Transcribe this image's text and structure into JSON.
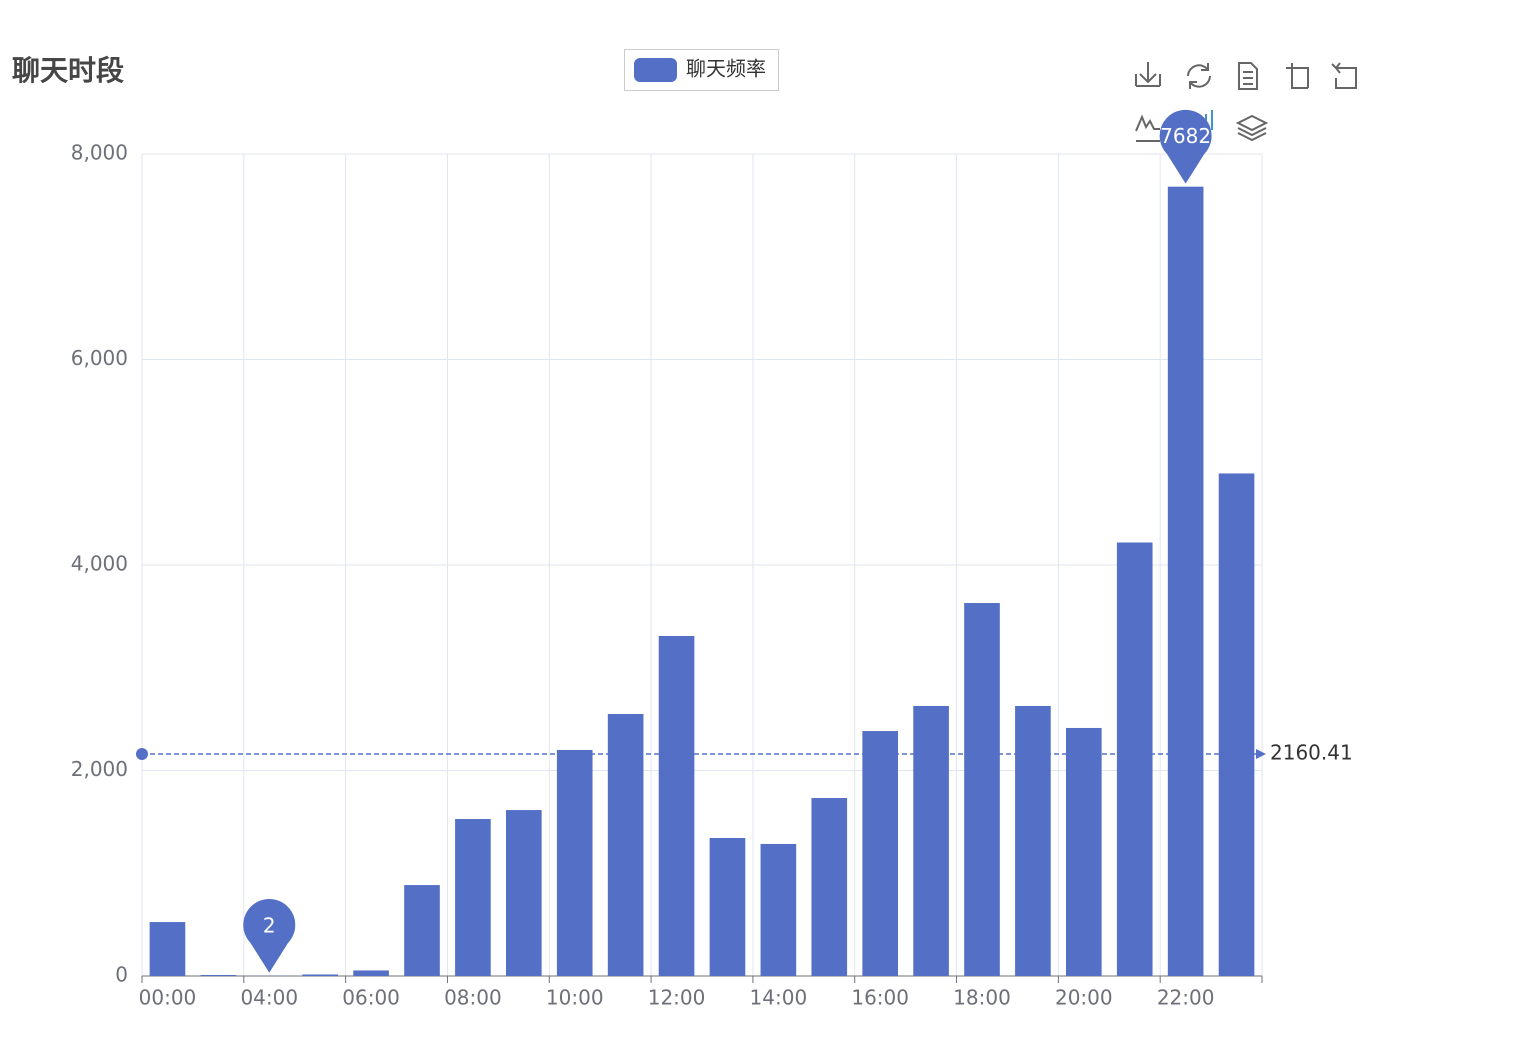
{
  "chart_data": {
    "type": "bar",
    "title": "聊天时段",
    "categories": [
      "00:00",
      null,
      "04:00",
      null,
      "06:00",
      null,
      "08:00",
      null,
      "10:00",
      null,
      "12:00",
      null,
      "14:00",
      null,
      "16:00",
      null,
      "18:00",
      null,
      "20:00",
      null,
      "22:00",
      null
    ],
    "series": [
      {
        "name": "聊天频率",
        "color": "#5470c6",
        "values": [
          525,
          10,
          2,
          15,
          54,
          885,
          1528,
          1615,
          2200,
          2550,
          3309,
          1343,
          1285,
          1732,
          2384,
          2628,
          3630,
          2628,
          2414,
          4219,
          7682,
          4891
        ]
      }
    ],
    "mark_points": [
      {
        "category": "22:00",
        "value": 7682,
        "label": "7682"
      },
      {
        "category": "04:00",
        "value": 2,
        "label": "2"
      }
    ],
    "mark_line": {
      "value": 2160.41,
      "label": "2160.41"
    },
    "ylim": [
      0,
      8000
    ],
    "yticks": [
      0,
      {
        "value": 2000,
        "label": "2,000"
      },
      {
        "value": 4000,
        "label": "4,000"
      },
      {
        "value": 6000,
        "label": "6,000"
      },
      {
        "value": 8000,
        "label": "8,000"
      }
    ],
    "grid": true
  }
}
